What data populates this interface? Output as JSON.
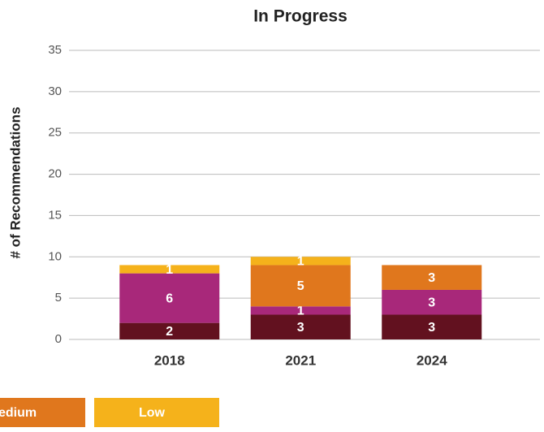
{
  "chart_data": {
    "type": "stacked_bar",
    "title": "In Progress",
    "y_label": "# of Recommendations",
    "categories": [
      "2018",
      "2021",
      "2024"
    ],
    "series": [
      {
        "color": "#62111f",
        "values": [
          2,
          3,
          3
        ]
      },
      {
        "color": "#a8287a",
        "values": [
          6,
          1,
          3
        ]
      },
      {
        "name": "edium",
        "color": "#e0771d",
        "values": [
          0,
          5,
          3
        ]
      },
      {
        "name": "Low",
        "color": "#f5b21b",
        "values": [
          1,
          1,
          0
        ]
      }
    ],
    "ylim": [
      0,
      35
    ],
    "yticks": [
      0,
      5,
      10,
      15,
      20,
      25,
      30,
      35
    ],
    "grid": true
  }
}
